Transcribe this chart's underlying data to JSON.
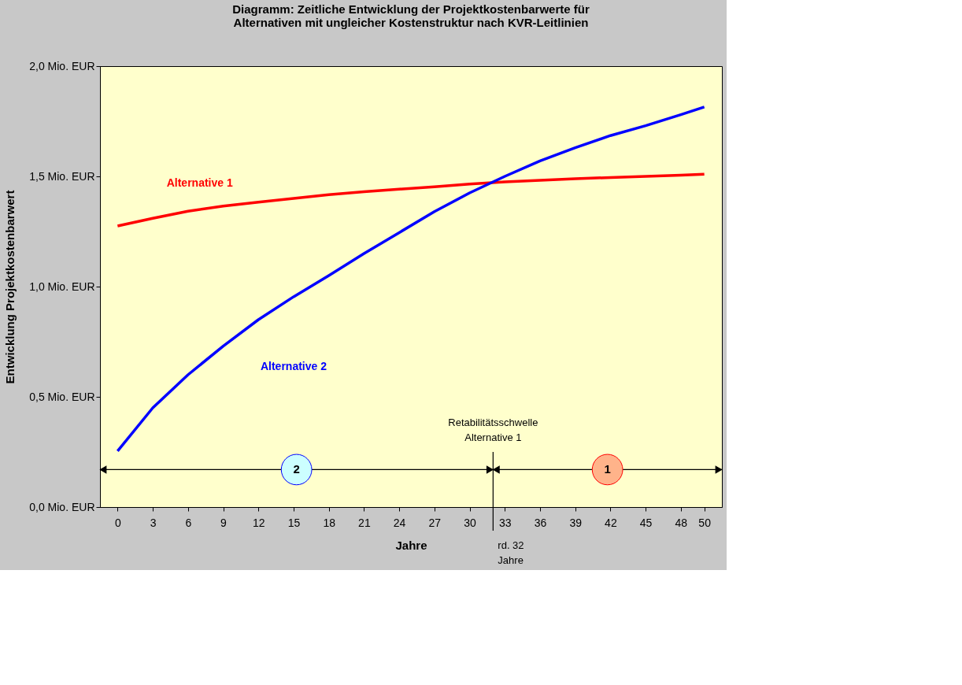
{
  "chart_data": {
    "type": "line",
    "title": [
      "Diagramm: Zeitliche Entwicklung der Projektkostenbarwerte für",
      "Alternativen mit ungleicher Kostenstruktur nach KVR-Leitlinien"
    ],
    "xlabel": "Jahre",
    "ylabel": "Entwicklung Projektkostenbarwert",
    "x": [
      0,
      3,
      6,
      9,
      12,
      15,
      18,
      21,
      24,
      27,
      30,
      33,
      36,
      39,
      42,
      45,
      48,
      50
    ],
    "xlim": [
      -1.5,
      51.5
    ],
    "xticks": [
      0,
      3,
      6,
      9,
      12,
      15,
      18,
      21,
      24,
      27,
      30,
      33,
      36,
      39,
      42,
      45,
      48,
      50
    ],
    "series": [
      {
        "name": "Alternative 1",
        "color": "#ff0000",
        "values": [
          1.275,
          1.31,
          1.342,
          1.365,
          1.383,
          1.4,
          1.417,
          1.43,
          1.442,
          1.453,
          1.465,
          1.475,
          1.482,
          1.489,
          1.495,
          1.5,
          1.505,
          1.51
        ]
      },
      {
        "name": "Alternative 2",
        "color": "#0000ff",
        "values": [
          0.254,
          0.45,
          0.6,
          0.73,
          0.85,
          0.954,
          1.05,
          1.15,
          1.245,
          1.34,
          1.425,
          1.5,
          1.57,
          1.63,
          1.685,
          1.73,
          1.78,
          1.815
        ]
      }
    ],
    "ylim": [
      0,
      2
    ],
    "yticks": [
      {
        "value": 0,
        "label": "0,0 Mio. EUR"
      },
      {
        "value": 0.5,
        "label": "0,5 Mio. EUR"
      },
      {
        "value": 1,
        "label": "1,0 Mio. EUR"
      },
      {
        "value": 1.5,
        "label": "1,5 Mio. EUR"
      },
      {
        "value": 2,
        "label": "2,0 Mio. EUR"
      }
    ],
    "ref_lines": [
      {
        "axis": "x",
        "value": 32,
        "label": "Retabilitätsschwelle Alternative 1",
        "color": "#000000"
      }
    ],
    "annotations": [
      "rd. 32 Jahre",
      "2",
      "1"
    ],
    "grid": false,
    "legend": false,
    "marker": "none",
    "line_style": "solid"
  }
}
